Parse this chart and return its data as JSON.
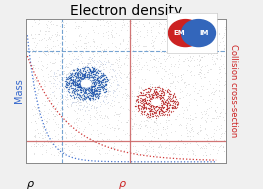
{
  "title": "Electron density",
  "title_fontsize": 10,
  "ylabel_left": "Mass",
  "ylabel_right": "Collision cross-section",
  "xlabel_rho1": "ρ",
  "xlabel_rho2": "ρ",
  "bg_color": "#f0f0f0",
  "ax_bg": "#ffffff",
  "blue_curve_color": "#3366cc",
  "red_curve_color": "#cc2222",
  "blue_line_color": "#6699cc",
  "red_line_color": "#cc6666",
  "em_circle_color": "#cc2222",
  "im_circle_color": "#3366bb",
  "xlim": [
    0,
    10
  ],
  "ylim": [
    0,
    10
  ],
  "blue_hline_y": 7.8,
  "blue_vline_x": 1.8,
  "red_hline_y": 1.5,
  "red_vline_x": 5.2
}
